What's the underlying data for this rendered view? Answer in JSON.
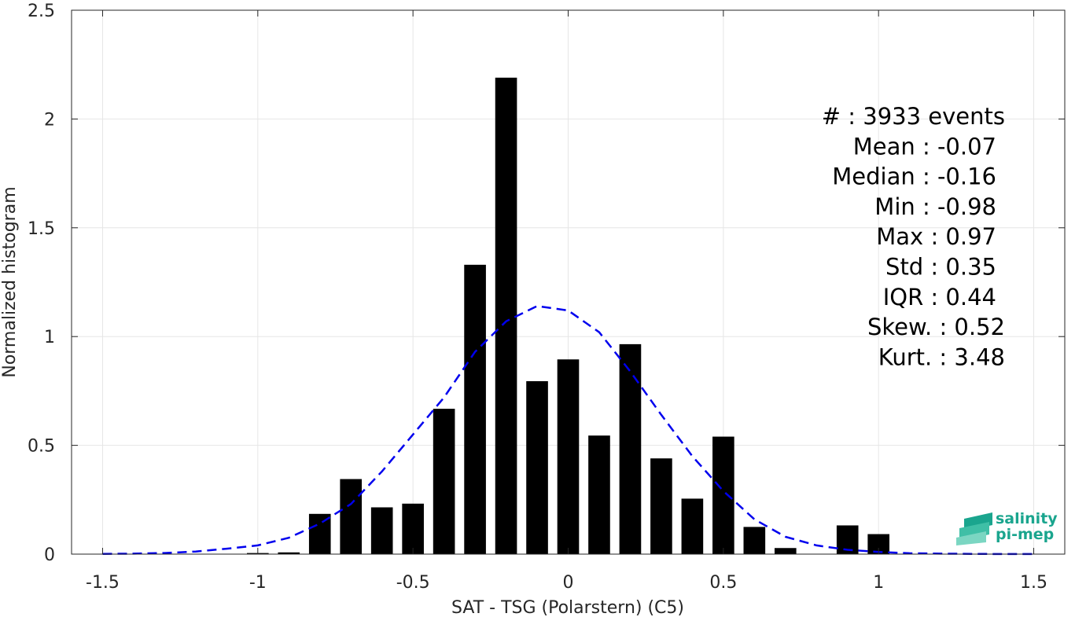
{
  "chart_data": {
    "type": "bar",
    "xlabel": "SAT - TSG (Polarstern) (C5)",
    "ylabel": "Normalized histogram",
    "xlim": [
      -1.6,
      1.6
    ],
    "ylim": [
      0,
      2.5
    ],
    "xticks": [
      -1.5,
      -1,
      -0.5,
      0,
      0.5,
      1,
      1.5
    ],
    "xtick_labels": [
      "-1.5",
      "-1",
      "-0.5",
      "0",
      "0.5",
      "1",
      "1.5"
    ],
    "yticks": [
      0,
      0.5,
      1,
      1.5,
      2,
      2.5
    ],
    "ytick_labels": [
      "0",
      "0.5",
      "1",
      "1.5",
      "2",
      "2.5"
    ],
    "grid": true,
    "bar_color": "#000000",
    "bin_width": 0.1,
    "bars": {
      "x": [
        -1.0,
        -0.9,
        -0.8,
        -0.7,
        -0.6,
        -0.5,
        -0.4,
        -0.3,
        -0.2,
        -0.1,
        0.0,
        0.1,
        0.2,
        0.3,
        0.4,
        0.5,
        0.6,
        0.7,
        0.8,
        0.9,
        1.0
      ],
      "values": [
        0.005,
        0.008,
        0.185,
        0.345,
        0.215,
        0.232,
        0.668,
        1.33,
        2.19,
        0.795,
        0.895,
        0.545,
        0.965,
        0.44,
        0.255,
        0.54,
        0.125,
        0.028,
        0.0,
        0.132,
        0.092
      ]
    },
    "fit_curve": {
      "style": "dashed",
      "color": "#0000ee",
      "x": [
        -1.5,
        -1.4,
        -1.3,
        -1.2,
        -1.1,
        -1.0,
        -0.9,
        -0.8,
        -0.7,
        -0.6,
        -0.5,
        -0.4,
        -0.3,
        -0.2,
        -0.1,
        0.0,
        0.1,
        0.2,
        0.3,
        0.4,
        0.5,
        0.6,
        0.7,
        0.8,
        0.9,
        1.0,
        1.1,
        1.2,
        1.3,
        1.4,
        1.5
      ],
      "y": [
        0.001,
        0.002,
        0.005,
        0.012,
        0.025,
        0.04,
        0.075,
        0.14,
        0.23,
        0.38,
        0.55,
        0.72,
        0.93,
        1.07,
        1.14,
        1.12,
        1.02,
        0.84,
        0.64,
        0.45,
        0.29,
        0.16,
        0.08,
        0.04,
        0.02,
        0.01,
        0.004,
        0.002,
        0.001,
        0.0005,
        0.0002
      ]
    },
    "annotations": [
      "#  : 3933 events",
      "Mean : -0.07",
      "Median : -0.16",
      "Min : -0.98",
      "Max : 0.97",
      "Std : 0.35",
      "IQR : 0.44",
      "Skew. : 0.52",
      "Kurt. : 3.48"
    ]
  },
  "logo": {
    "line1": "salinity",
    "line2": "pi-mep",
    "color": "#1aa58e"
  }
}
